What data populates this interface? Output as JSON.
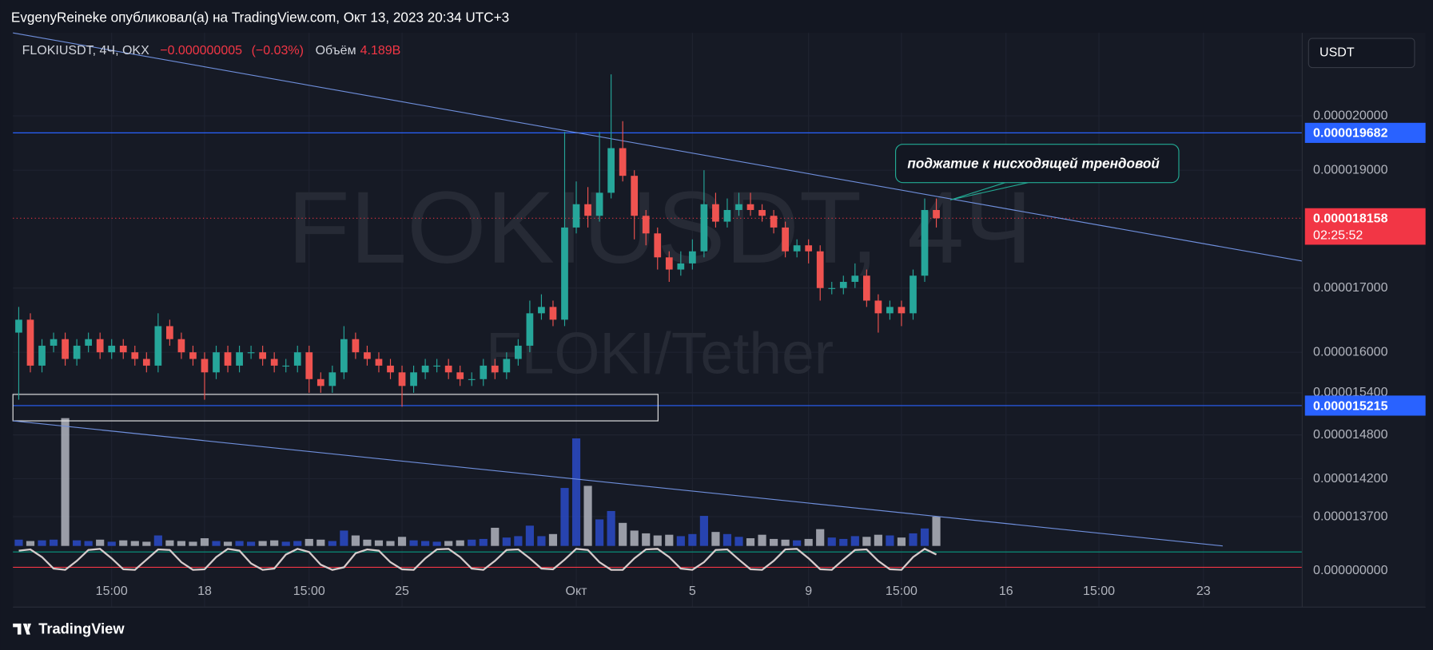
{
  "header": {
    "text": "EvgenyReineke опубликовал(а) на TradingView.com, Окт 13, 2023 20:34 UTC+3"
  },
  "chart_data": {
    "type": "candlestick",
    "symbol": "FLOKIUSDT, 4Ч, OKX",
    "change": {
      "value": -5e-09,
      "label": "−0.000000005"
    },
    "change_pct": {
      "value": -0.03,
      "label": "(−0.03%)"
    },
    "volume_title": "Объём",
    "last_volume": {
      "value": 4189000000,
      "label": "4.189B"
    },
    "watermark": "FLOKIUSDT, 4Ч",
    "watermark_sub": "FLOKI/Tether",
    "currency": "USDT",
    "annotation": "поджатие к нисходящей трендовой",
    "countdown": "02:25:52",
    "log_scale": true,
    "grid": true,
    "up_color": "#26a69a",
    "down_color": "#ef5350",
    "volume_up_color": "#2a4bc8",
    "volume_down_color": "#b2b5be",
    "oscillator_color": "#d6cccc",
    "level_color": "#2962ff",
    "last_price_color": "#f23645",
    "ylim": [
      1.258e-05,
      2.163e-05
    ],
    "yticks": [
      {
        "value": 2e-05,
        "label": "0.000020000"
      },
      {
        "value": 1.9e-05,
        "label": "0.000019000"
      },
      {
        "value": 1.7e-05,
        "label": "0.000017000"
      },
      {
        "value": 1.6e-05,
        "label": "0.000016000"
      },
      {
        "value": 1.54e-05,
        "label": "0.000015400"
      },
      {
        "value": 1.48e-05,
        "label": "0.000014800"
      },
      {
        "value": 1.42e-05,
        "label": "0.000014200"
      },
      {
        "value": 1.37e-05,
        "label": "0.000013700"
      }
    ],
    "indicator_ticks": [
      {
        "value": 0,
        "label": "0.000000000"
      }
    ],
    "levels": [
      {
        "value": 1.9682e-05,
        "label": "0.000019682"
      },
      {
        "value": 1.5215e-05,
        "label": "0.000015215"
      }
    ],
    "last_price": {
      "value": 1.8158e-05,
      "label": "0.000018158"
    },
    "oscillator_lim": [
      0,
      100
    ],
    "oscillator_levels": [
      80,
      20
    ],
    "categories": [
      null,
      null,
      null,
      null,
      null,
      null,
      null,
      null,
      "15:00",
      null,
      null,
      null,
      null,
      null,
      null,
      null,
      "18",
      null,
      null,
      null,
      null,
      null,
      null,
      null,
      null,
      "15:00",
      null,
      null,
      null,
      null,
      null,
      null,
      null,
      "25",
      null,
      null,
      null,
      null,
      null,
      null,
      null,
      null,
      null,
      null,
      null,
      null,
      null,
      null,
      "Окт",
      null,
      null,
      null,
      null,
      null,
      null,
      null,
      null,
      null,
      "5",
      null,
      null,
      null,
      null,
      null,
      null,
      null,
      null,
      null,
      "9",
      null,
      null,
      null,
      null,
      null,
      null,
      null,
      "15:00",
      null,
      null,
      null,
      null,
      null,
      null,
      null,
      null,
      "16",
      null,
      null,
      null,
      null,
      null,
      null,
      null,
      "15:00",
      null,
      null,
      null,
      null,
      null,
      null,
      null,
      null,
      "23",
      null,
      null,
      null,
      null,
      null,
      null,
      null,
      null
    ],
    "open": [
      1.63e-05,
      1.65e-05,
      1.58e-05,
      1.61e-05,
      1.62e-05,
      1.59e-05,
      1.61e-05,
      1.62e-05,
      1.6e-05,
      1.61e-05,
      1.6e-05,
      1.59e-05,
      1.58e-05,
      1.64e-05,
      1.62e-05,
      1.6e-05,
      1.59e-05,
      1.57e-05,
      1.6e-05,
      1.58e-05,
      1.6e-05,
      1.6e-05,
      1.59e-05,
      1.58e-05,
      1.58e-05,
      1.6e-05,
      1.56e-05,
      1.55e-05,
      1.57e-05,
      1.62e-05,
      1.6e-05,
      1.59e-05,
      1.58e-05,
      1.57e-05,
      1.55e-05,
      1.57e-05,
      1.58e-05,
      1.58e-05,
      1.57e-05,
      1.56e-05,
      1.56e-05,
      1.58e-05,
      1.57e-05,
      1.59e-05,
      1.61e-05,
      1.66e-05,
      1.67e-05,
      1.65e-05,
      1.8e-05,
      1.84e-05,
      1.82e-05,
      1.86e-05,
      1.94e-05,
      1.89e-05,
      1.82e-05,
      1.79e-05,
      1.75e-05,
      1.73e-05,
      1.74e-05,
      1.76e-05,
      1.84e-05,
      1.81e-05,
      1.83e-05,
      1.84e-05,
      1.83e-05,
      1.82e-05,
      1.8e-05,
      1.76e-05,
      1.77e-05,
      1.76e-05,
      1.7e-05,
      1.7e-05,
      1.71e-05,
      1.72e-05,
      1.68e-05,
      1.66e-05,
      1.67e-05,
      1.66e-05,
      1.72e-05,
      1.83e-05,
      null,
      null,
      null,
      null,
      null,
      null,
      null,
      null,
      null,
      null,
      null,
      null,
      null,
      null,
      null,
      null,
      null,
      null,
      null,
      null,
      null,
      null,
      null,
      null,
      null,
      null,
      null,
      null,
      null,
      null,
      null
    ],
    "high": [
      1.67e-05,
      1.66e-05,
      1.62e-05,
      1.63e-05,
      1.63e-05,
      1.62e-05,
      1.63e-05,
      1.63e-05,
      1.62e-05,
      1.62e-05,
      1.61e-05,
      1.6e-05,
      1.66e-05,
      1.65e-05,
      1.63e-05,
      1.61e-05,
      1.6e-05,
      1.61e-05,
      1.61e-05,
      1.61e-05,
      1.61e-05,
      1.61e-05,
      1.6e-05,
      1.59e-05,
      1.61e-05,
      1.61e-05,
      1.57e-05,
      1.58e-05,
      1.64e-05,
      1.63e-05,
      1.61e-05,
      1.6e-05,
      1.59e-05,
      1.58e-05,
      1.58e-05,
      1.59e-05,
      1.59e-05,
      1.59e-05,
      1.58e-05,
      1.57e-05,
      1.59e-05,
      1.59e-05,
      1.6e-05,
      1.62e-05,
      1.68e-05,
      1.69e-05,
      1.68e-05,
      1.97e-05,
      1.88e-05,
      1.87e-05,
      1.97e-05,
      2.08e-05,
      1.99e-05,
      1.9e-05,
      1.83e-05,
      1.8e-05,
      1.76e-05,
      1.76e-05,
      1.78e-05,
      1.9e-05,
      1.86e-05,
      1.85e-05,
      1.86e-05,
      1.86e-05,
      1.84e-05,
      1.83e-05,
      1.81e-05,
      1.78e-05,
      1.78e-05,
      1.77e-05,
      1.71e-05,
      1.72e-05,
      1.74e-05,
      1.73e-05,
      1.69e-05,
      1.68e-05,
      1.68e-05,
      1.73e-05,
      1.85e-05,
      1.85e-05,
      null,
      null,
      null,
      null,
      null,
      null,
      null,
      null,
      null,
      null,
      null,
      null,
      null,
      null,
      null,
      null,
      null,
      null,
      null,
      null,
      null,
      null,
      null,
      null,
      null,
      null,
      null,
      null,
      null,
      null,
      null
    ],
    "low": [
      1.53e-05,
      1.57e-05,
      1.57e-05,
      1.6e-05,
      1.58e-05,
      1.58e-05,
      1.6e-05,
      1.59e-05,
      1.59e-05,
      1.59e-05,
      1.58e-05,
      1.57e-05,
      1.57e-05,
      1.61e-05,
      1.59e-05,
      1.58e-05,
      1.53e-05,
      1.56e-05,
      1.57e-05,
      1.57e-05,
      1.59e-05,
      1.58e-05,
      1.57e-05,
      1.57e-05,
      1.57e-05,
      1.54e-05,
      1.54e-05,
      1.54e-05,
      1.56e-05,
      1.59e-05,
      1.58e-05,
      1.57e-05,
      1.56e-05,
      1.52e-05,
      1.54e-05,
      1.56e-05,
      1.57e-05,
      1.56e-05,
      1.55e-05,
      1.55e-05,
      1.55e-05,
      1.56e-05,
      1.56e-05,
      1.58e-05,
      1.6e-05,
      1.65e-05,
      1.64e-05,
      1.64e-05,
      1.79e-05,
      1.8e-05,
      1.81e-05,
      1.85e-05,
      1.88e-05,
      1.78e-05,
      1.77e-05,
      1.73e-05,
      1.71e-05,
      1.72e-05,
      1.73e-05,
      1.75e-05,
      1.8e-05,
      1.8e-05,
      1.82e-05,
      1.82e-05,
      1.81e-05,
      1.79e-05,
      1.75e-05,
      1.75e-05,
      1.74e-05,
      1.68e-05,
      1.69e-05,
      1.69e-05,
      1.7e-05,
      1.67e-05,
      1.63e-05,
      1.65e-05,
      1.64e-05,
      1.65e-05,
      1.71e-05,
      1.8e-05,
      null,
      null,
      null,
      null,
      null,
      null,
      null,
      null,
      null,
      null,
      null,
      null,
      null,
      null,
      null,
      null,
      null,
      null,
      null,
      null,
      null,
      null,
      null,
      null,
      null,
      null,
      null,
      null,
      null,
      null,
      null
    ],
    "close": [
      1.65e-05,
      1.58e-05,
      1.61e-05,
      1.62e-05,
      1.59e-05,
      1.61e-05,
      1.62e-05,
      1.6e-05,
      1.61e-05,
      1.6e-05,
      1.59e-05,
      1.58e-05,
      1.64e-05,
      1.62e-05,
      1.6e-05,
      1.59e-05,
      1.57e-05,
      1.6e-05,
      1.58e-05,
      1.6e-05,
      1.6e-05,
      1.59e-05,
      1.58e-05,
      1.58e-05,
      1.6e-05,
      1.56e-05,
      1.55e-05,
      1.57e-05,
      1.62e-05,
      1.6e-05,
      1.59e-05,
      1.58e-05,
      1.57e-05,
      1.55e-05,
      1.57e-05,
      1.58e-05,
      1.58e-05,
      1.57e-05,
      1.56e-05,
      1.56e-05,
      1.58e-05,
      1.57e-05,
      1.59e-05,
      1.61e-05,
      1.66e-05,
      1.67e-05,
      1.65e-05,
      1.8e-05,
      1.84e-05,
      1.82e-05,
      1.86e-05,
      1.94e-05,
      1.89e-05,
      1.82e-05,
      1.79e-05,
      1.75e-05,
      1.73e-05,
      1.74e-05,
      1.76e-05,
      1.84e-05,
      1.81e-05,
      1.83e-05,
      1.84e-05,
      1.83e-05,
      1.82e-05,
      1.8e-05,
      1.76e-05,
      1.77e-05,
      1.76e-05,
      1.7e-05,
      1.7e-05,
      1.71e-05,
      1.72e-05,
      1.68e-05,
      1.66e-05,
      1.67e-05,
      1.66e-05,
      1.72e-05,
      1.83e-05,
      1.8158e-05,
      null,
      null,
      null,
      null,
      null,
      null,
      null,
      null,
      null,
      null,
      null,
      null,
      null,
      null,
      null,
      null,
      null,
      null,
      null,
      null,
      null,
      null,
      null,
      null,
      null,
      null,
      null,
      null,
      null,
      null,
      null
    ],
    "volume": [
      900000000,
      700000000,
      800000000,
      900000000,
      18300000000,
      800000000,
      700000000,
      900000000,
      600000000,
      800000000,
      700000000,
      600000000,
      1500000000,
      800000000,
      700000000,
      600000000,
      1100000000,
      700000000,
      600000000,
      700000000,
      600000000,
      700000000,
      800000000,
      600000000,
      700000000,
      1000000000,
      900000000,
      700000000,
      2200000000,
      1500000000,
      900000000,
      800000000,
      700000000,
      1300000000,
      800000000,
      700000000,
      600000000,
      700000000,
      800000000,
      900000000,
      1000000000,
      2600000000,
      1200000000,
      1400000000,
      2900000000,
      1400000000,
      1700000000,
      8300000000,
      15400000000,
      8600000000,
      3800000000,
      5000000000,
      3300000000,
      2200000000,
      1800000000,
      1500000000,
      1600000000,
      1400000000,
      1700000000,
      4300000000,
      2000000000,
      1700000000,
      1300000000,
      1100000000,
      1600000000,
      1000000000,
      900000000,
      800000000,
      1000000000,
      2400000000,
      1200000000,
      1000000000,
      1400000000,
      1300000000,
      1600000000,
      1500000000,
      1200000000,
      1800000000,
      2500000000,
      4189000000,
      null,
      null,
      null,
      null,
      null,
      null,
      null,
      null,
      null,
      null,
      null,
      null,
      null,
      null,
      null,
      null,
      null,
      null,
      null,
      null,
      null,
      null,
      null,
      null,
      null,
      null,
      null,
      null,
      null,
      null,
      null
    ],
    "oscillator": [
      85,
      90,
      60,
      15,
      10,
      45,
      88,
      92,
      55,
      12,
      10,
      50,
      90,
      88,
      40,
      10,
      12,
      60,
      92,
      85,
      35,
      10,
      15,
      70,
      92,
      80,
      30,
      10,
      20,
      75,
      90,
      85,
      40,
      12,
      10,
      55,
      90,
      92,
      60,
      15,
      10,
      45,
      88,
      90,
      55,
      15,
      12,
      50,
      92,
      88,
      40,
      10,
      10,
      55,
      90,
      92,
      60,
      15,
      10,
      40,
      88,
      90,
      50,
      12,
      10,
      45,
      90,
      92,
      55,
      12,
      10,
      50,
      88,
      90,
      45,
      12,
      10,
      60,
      92,
      70,
      null,
      null,
      null,
      null,
      null,
      null,
      null,
      null,
      null,
      null,
      null,
      null,
      null,
      null,
      null,
      null,
      null,
      null,
      null,
      null,
      null,
      null,
      null,
      null,
      null,
      null,
      null,
      null,
      null,
      null,
      null
    ]
  },
  "footer": {
    "logo": "TradingView"
  }
}
